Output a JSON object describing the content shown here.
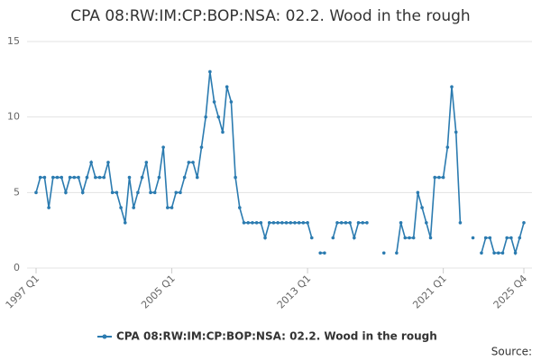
{
  "chart_data": {
    "type": "line",
    "title": "CPA 08:RW:IM:CP:BOP:NSA: 02.2. Wood in the rough",
    "source": "Source:",
    "categories": [
      "1997 Q1",
      null,
      null,
      null,
      null,
      null,
      null,
      null,
      null,
      null,
      null,
      null,
      null,
      null,
      null,
      null,
      null,
      null,
      null,
      null,
      null,
      null,
      null,
      null,
      null,
      null,
      null,
      null,
      null,
      null,
      null,
      null,
      "2005 Q1",
      null,
      null,
      null,
      null,
      null,
      null,
      null,
      null,
      null,
      null,
      null,
      null,
      null,
      null,
      null,
      null,
      null,
      null,
      null,
      null,
      null,
      null,
      null,
      null,
      null,
      null,
      null,
      null,
      null,
      null,
      null,
      "2013 Q1",
      null,
      null,
      null,
      null,
      null,
      null,
      null,
      null,
      null,
      null,
      null,
      null,
      null,
      null,
      null,
      null,
      null,
      null,
      null,
      null,
      null,
      null,
      null,
      null,
      null,
      null,
      null,
      null,
      null,
      null,
      null,
      "2021 Q1",
      null,
      null,
      null,
      null,
      null,
      null,
      null,
      null,
      null,
      null,
      null,
      null,
      null,
      null,
      null,
      null,
      null,
      null,
      "2025 Q4"
    ],
    "series": [
      {
        "name": "CPA 08:RW:IM:CP:BOP:NSA: 02.2. Wood in the rough",
        "color": "#2b7bb0",
        "values": [
          5,
          6,
          6,
          4,
          6,
          6,
          6,
          5,
          6,
          6,
          6,
          5,
          6,
          7,
          6,
          6,
          6,
          7,
          5,
          5,
          4,
          3,
          6,
          4,
          5,
          6,
          7,
          5,
          5,
          6,
          8,
          4,
          4,
          5,
          5,
          6,
          7,
          7,
          6,
          8,
          10,
          13,
          11,
          10,
          9,
          12,
          11,
          6,
          4,
          3,
          3,
          3,
          3,
          3,
          2,
          3,
          3,
          3,
          3,
          3,
          3,
          3,
          3,
          3,
          3,
          2,
          null,
          1,
          1,
          null,
          2,
          3,
          3,
          3,
          3,
          2,
          3,
          3,
          3,
          null,
          null,
          null,
          1,
          null,
          null,
          1,
          3,
          2,
          2,
          2,
          5,
          4,
          3,
          2,
          6,
          6,
          6,
          8,
          12,
          9,
          3,
          null,
          null,
          2,
          null,
          1,
          2,
          2,
          1,
          1,
          1,
          2,
          2,
          1,
          2,
          3
        ]
      }
    ],
    "ylim": [
      0,
      15
    ],
    "yticks": [
      0,
      5,
      10,
      15
    ],
    "grid": true
  }
}
